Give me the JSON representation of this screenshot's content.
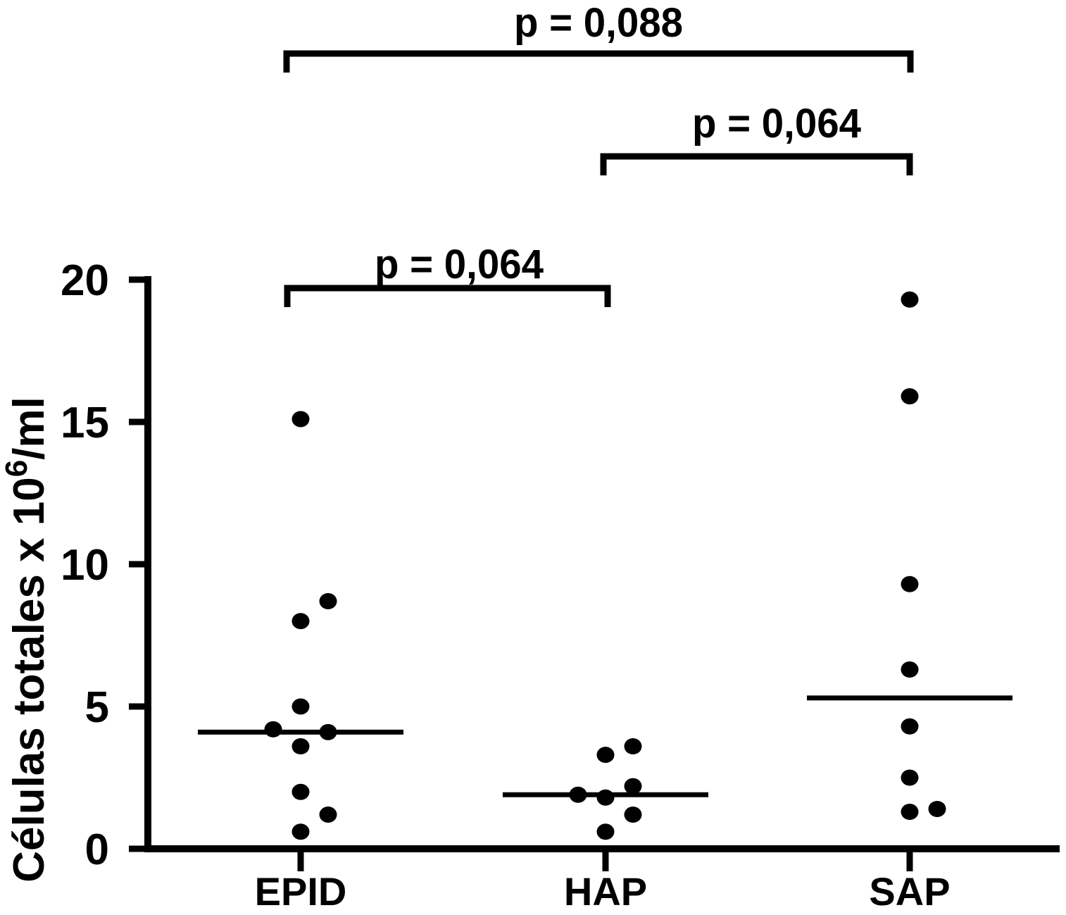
{
  "figure": {
    "background": "#ffffff",
    "ink_color": "#000000"
  },
  "chart_data": {
    "type": "scatter",
    "subtype": "dot-plot-with-medians",
    "title": "",
    "xlabel": "",
    "ylabel": "Células totales x 10^6/ml",
    "ylabel_parts": {
      "base": "Células totales x 10",
      "sup": "6",
      "rest": "/ml"
    },
    "ylim": [
      0,
      20
    ],
    "yticks": [
      0,
      5,
      10,
      15,
      20
    ],
    "grid": false,
    "legend": "none",
    "decimal_separator": ",",
    "marker": "filled-black-circle",
    "groups": [
      {
        "label": "EPID",
        "n": 10,
        "median": 4.1,
        "points": [
          {
            "v": 15.1,
            "dx": 0
          },
          {
            "v": 8.7,
            "dx": 1
          },
          {
            "v": 8.0,
            "dx": 0
          },
          {
            "v": 5.0,
            "dx": 0
          },
          {
            "v": 4.2,
            "dx": -1
          },
          {
            "v": 4.1,
            "dx": 1
          },
          {
            "v": 3.6,
            "dx": 0
          },
          {
            "v": 2.0,
            "dx": 0
          },
          {
            "v": 1.2,
            "dx": 1
          },
          {
            "v": 0.6,
            "dx": 0
          }
        ]
      },
      {
        "label": "HAP",
        "n": 7,
        "median": 1.9,
        "points": [
          {
            "v": 3.6,
            "dx": 1
          },
          {
            "v": 3.3,
            "dx": 0
          },
          {
            "v": 2.2,
            "dx": 1
          },
          {
            "v": 1.9,
            "dx": -1
          },
          {
            "v": 1.8,
            "dx": 0
          },
          {
            "v": 1.2,
            "dx": 1
          },
          {
            "v": 0.6,
            "dx": 0
          }
        ]
      },
      {
        "label": "SAP",
        "n": 8,
        "median": 5.3,
        "points": [
          {
            "v": 19.3,
            "dx": 0
          },
          {
            "v": 15.9,
            "dx": 0
          },
          {
            "v": 9.3,
            "dx": 0
          },
          {
            "v": 6.3,
            "dx": 0
          },
          {
            "v": 4.3,
            "dx": 0
          },
          {
            "v": 2.5,
            "dx": 0
          },
          {
            "v": 1.4,
            "dx": 1
          },
          {
            "v": 1.3,
            "dx": 0
          }
        ]
      }
    ],
    "comparisons": [
      {
        "label": "p = 0,088",
        "from": "EPID",
        "to": "SAP"
      },
      {
        "label": "p = 0,064",
        "from": "HAP",
        "to": "SAP"
      },
      {
        "label": "p = 0,064",
        "from": "EPID",
        "to": "HAP"
      }
    ]
  }
}
